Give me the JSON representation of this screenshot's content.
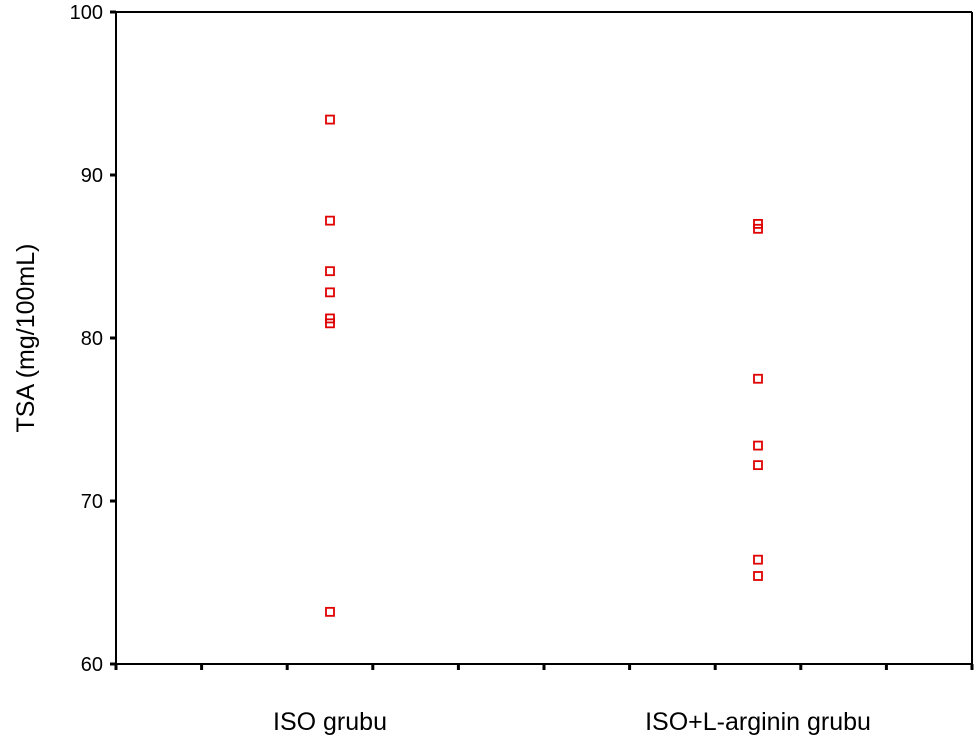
{
  "chart_data": {
    "type": "scatter",
    "title": "",
    "xlabel": "",
    "ylabel": "TSA (mg/100mL)",
    "ylim": [
      60,
      100
    ],
    "yticks": [
      60,
      70,
      80,
      90,
      100
    ],
    "categories": [
      "ISO grubu",
      "ISO+L-arginin grubu"
    ],
    "grid": false,
    "legend": "none",
    "marker": "hollow-square",
    "color": "#e00000",
    "series": [
      {
        "category": "ISO grubu",
        "values": [
          93.4,
          87.2,
          84.1,
          82.8,
          81.2,
          80.9,
          63.2
        ]
      },
      {
        "category": "ISO+L-arginin grubu",
        "values": [
          87.0,
          86.7,
          77.5,
          73.4,
          72.2,
          66.4,
          65.4
        ]
      }
    ]
  }
}
